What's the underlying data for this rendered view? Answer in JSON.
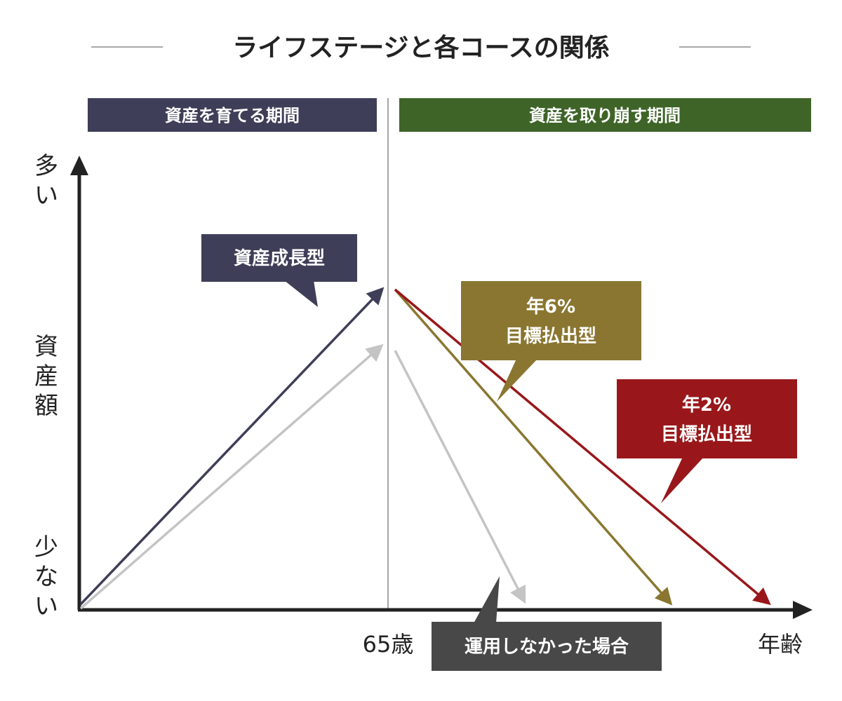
{
  "title": "ライフステージと各コースの関係",
  "periods": {
    "growing": "資産を育てる期間",
    "drawdown": "資産を取り崩す期間"
  },
  "axes": {
    "y_label": "資産額",
    "y_high": "多い",
    "y_low": "少ない",
    "x_label": "年齢",
    "x_marker": "65歳"
  },
  "callouts": {
    "growth": "資産成長型",
    "payout6_line1": "年6%",
    "payout6_line2": "目標払出型",
    "payout2_line1": "年2%",
    "payout2_line2": "目標払出型",
    "no_investment": "運用しなかった場合"
  },
  "colors": {
    "navy": "#3f3e58",
    "green": "#3e6428",
    "olive": "#8a7630",
    "red": "#99171a",
    "gray": "#c4c4c4",
    "dark": "#484848",
    "axis": "#222222"
  }
}
